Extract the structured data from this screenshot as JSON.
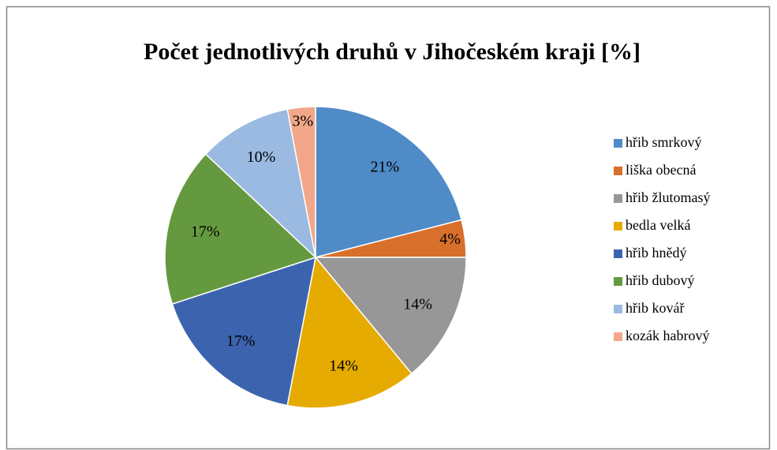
{
  "chart_data": {
    "type": "pie",
    "title": "Počet jednotlivých druhů v Jihočeském kraji [%]",
    "categories": [
      "hřib smrkový",
      "liška obecná",
      "hřib žlutomasý",
      "bedla velká",
      "hřib hnědý",
      "hřib dubový",
      "hřib kovář",
      "kozák habrový"
    ],
    "values": [
      21,
      4,
      14,
      14,
      17,
      17,
      10,
      3
    ],
    "value_labels": [
      "21%",
      "4%",
      "14%",
      "14%",
      "17%",
      "17%",
      "10%",
      "3%"
    ],
    "colors": [
      "#4f8bc6",
      "#d8702c",
      "#979797",
      "#e5ab00",
      "#3c64ae",
      "#65993f",
      "#9bbae1",
      "#f2a78a"
    ],
    "legend": "right"
  }
}
